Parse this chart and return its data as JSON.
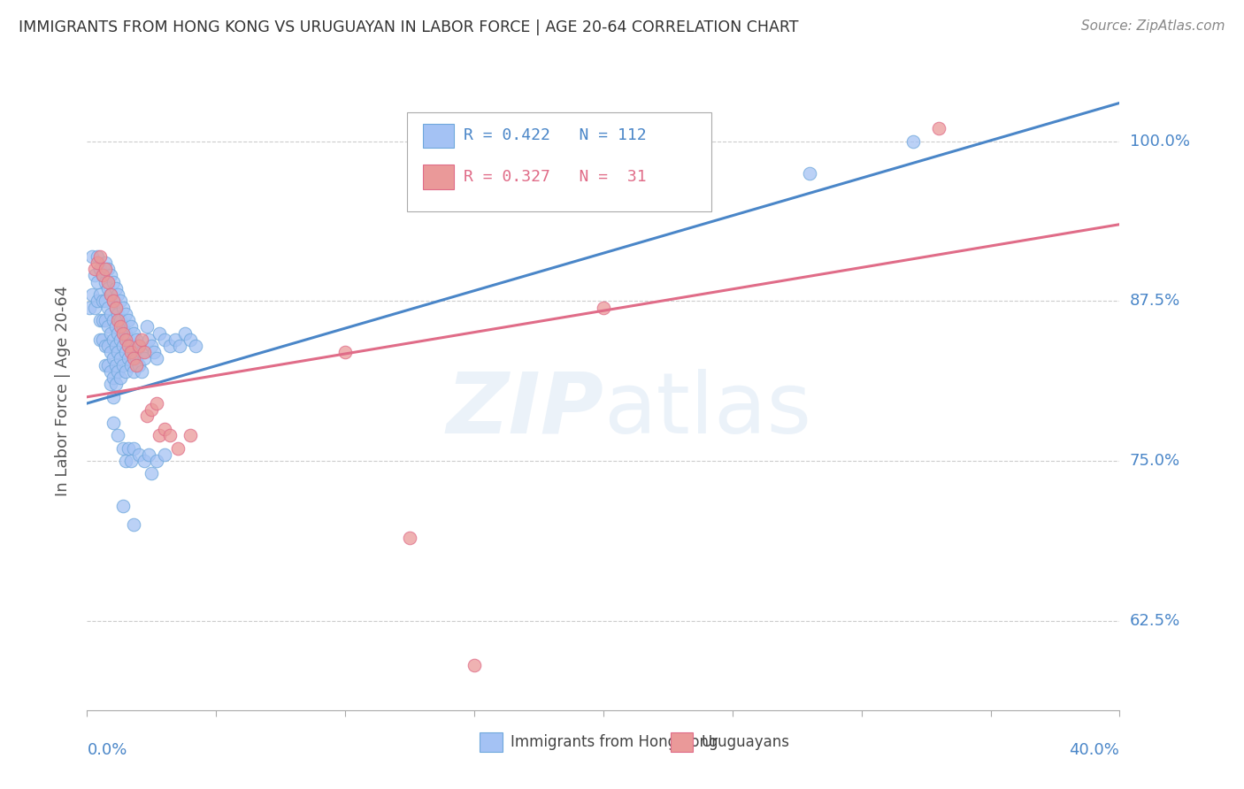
{
  "title": "IMMIGRANTS FROM HONG KONG VS URUGUAYAN IN LABOR FORCE | AGE 20-64 CORRELATION CHART",
  "source_text": "Source: ZipAtlas.com",
  "ylabel": "In Labor Force | Age 20-64",
  "yticks": [
    0.625,
    0.75,
    0.875,
    1.0
  ],
  "ytick_labels": [
    "62.5%",
    "75.0%",
    "87.5%",
    "100.0%"
  ],
  "xlim": [
    0.0,
    0.4
  ],
  "ylim": [
    0.555,
    1.055
  ],
  "title_color": "#333333",
  "axis_color": "#4a86c8",
  "hk_line_color": "#4a86c8",
  "uy_line_color": "#e06c88",
  "hk_dot_color": "#a4c2f4",
  "uy_dot_color": "#ea9999",
  "hk_dot_edge": "#6fa8dc",
  "uy_dot_edge": "#e06c88",
  "hk_scatter": [
    [
      0.001,
      0.87
    ],
    [
      0.002,
      0.88
    ],
    [
      0.002,
      0.91
    ],
    [
      0.003,
      0.895
    ],
    [
      0.003,
      0.87
    ],
    [
      0.004,
      0.91
    ],
    [
      0.004,
      0.89
    ],
    [
      0.004,
      0.875
    ],
    [
      0.005,
      0.9
    ],
    [
      0.005,
      0.88
    ],
    [
      0.005,
      0.86
    ],
    [
      0.005,
      0.845
    ],
    [
      0.006,
      0.895
    ],
    [
      0.006,
      0.875
    ],
    [
      0.006,
      0.86
    ],
    [
      0.006,
      0.845
    ],
    [
      0.007,
      0.905
    ],
    [
      0.007,
      0.89
    ],
    [
      0.007,
      0.875
    ],
    [
      0.007,
      0.86
    ],
    [
      0.007,
      0.84
    ],
    [
      0.007,
      0.825
    ],
    [
      0.008,
      0.9
    ],
    [
      0.008,
      0.885
    ],
    [
      0.008,
      0.87
    ],
    [
      0.008,
      0.855
    ],
    [
      0.008,
      0.84
    ],
    [
      0.008,
      0.825
    ],
    [
      0.009,
      0.895
    ],
    [
      0.009,
      0.88
    ],
    [
      0.009,
      0.865
    ],
    [
      0.009,
      0.85
    ],
    [
      0.009,
      0.835
    ],
    [
      0.009,
      0.82
    ],
    [
      0.009,
      0.81
    ],
    [
      0.01,
      0.89
    ],
    [
      0.01,
      0.875
    ],
    [
      0.01,
      0.86
    ],
    [
      0.01,
      0.845
    ],
    [
      0.01,
      0.83
    ],
    [
      0.01,
      0.815
    ],
    [
      0.01,
      0.8
    ],
    [
      0.011,
      0.885
    ],
    [
      0.011,
      0.87
    ],
    [
      0.011,
      0.855
    ],
    [
      0.011,
      0.84
    ],
    [
      0.011,
      0.825
    ],
    [
      0.011,
      0.81
    ],
    [
      0.012,
      0.88
    ],
    [
      0.012,
      0.865
    ],
    [
      0.012,
      0.85
    ],
    [
      0.012,
      0.835
    ],
    [
      0.012,
      0.82
    ],
    [
      0.013,
      0.875
    ],
    [
      0.013,
      0.86
    ],
    [
      0.013,
      0.845
    ],
    [
      0.013,
      0.83
    ],
    [
      0.013,
      0.815
    ],
    [
      0.014,
      0.87
    ],
    [
      0.014,
      0.855
    ],
    [
      0.014,
      0.84
    ],
    [
      0.014,
      0.825
    ],
    [
      0.015,
      0.865
    ],
    [
      0.015,
      0.85
    ],
    [
      0.015,
      0.835
    ],
    [
      0.015,
      0.82
    ],
    [
      0.016,
      0.86
    ],
    [
      0.016,
      0.845
    ],
    [
      0.016,
      0.83
    ],
    [
      0.017,
      0.855
    ],
    [
      0.017,
      0.84
    ],
    [
      0.017,
      0.825
    ],
    [
      0.018,
      0.85
    ],
    [
      0.018,
      0.835
    ],
    [
      0.018,
      0.82
    ],
    [
      0.019,
      0.845
    ],
    [
      0.019,
      0.83
    ],
    [
      0.02,
      0.84
    ],
    [
      0.02,
      0.825
    ],
    [
      0.021,
      0.835
    ],
    [
      0.021,
      0.82
    ],
    [
      0.022,
      0.83
    ],
    [
      0.023,
      0.855
    ],
    [
      0.024,
      0.845
    ],
    [
      0.025,
      0.84
    ],
    [
      0.026,
      0.835
    ],
    [
      0.027,
      0.83
    ],
    [
      0.028,
      0.85
    ],
    [
      0.03,
      0.845
    ],
    [
      0.032,
      0.84
    ],
    [
      0.034,
      0.845
    ],
    [
      0.036,
      0.84
    ],
    [
      0.038,
      0.85
    ],
    [
      0.04,
      0.845
    ],
    [
      0.042,
      0.84
    ],
    [
      0.01,
      0.78
    ],
    [
      0.012,
      0.77
    ],
    [
      0.014,
      0.76
    ],
    [
      0.015,
      0.75
    ],
    [
      0.016,
      0.76
    ],
    [
      0.017,
      0.75
    ],
    [
      0.018,
      0.76
    ],
    [
      0.02,
      0.755
    ],
    [
      0.022,
      0.75
    ],
    [
      0.024,
      0.755
    ],
    [
      0.025,
      0.74
    ],
    [
      0.027,
      0.75
    ],
    [
      0.03,
      0.755
    ],
    [
      0.014,
      0.715
    ],
    [
      0.018,
      0.7
    ],
    [
      0.28,
      0.975
    ],
    [
      0.32,
      1.0
    ]
  ],
  "uy_scatter": [
    [
      0.003,
      0.9
    ],
    [
      0.004,
      0.905
    ],
    [
      0.005,
      0.91
    ],
    [
      0.006,
      0.895
    ],
    [
      0.007,
      0.9
    ],
    [
      0.008,
      0.89
    ],
    [
      0.009,
      0.88
    ],
    [
      0.01,
      0.875
    ],
    [
      0.011,
      0.87
    ],
    [
      0.012,
      0.86
    ],
    [
      0.013,
      0.855
    ],
    [
      0.014,
      0.85
    ],
    [
      0.015,
      0.845
    ],
    [
      0.016,
      0.84
    ],
    [
      0.017,
      0.835
    ],
    [
      0.018,
      0.83
    ],
    [
      0.019,
      0.825
    ],
    [
      0.02,
      0.84
    ],
    [
      0.021,
      0.845
    ],
    [
      0.022,
      0.835
    ],
    [
      0.023,
      0.785
    ],
    [
      0.025,
      0.79
    ],
    [
      0.027,
      0.795
    ],
    [
      0.028,
      0.77
    ],
    [
      0.03,
      0.775
    ],
    [
      0.032,
      0.77
    ],
    [
      0.035,
      0.76
    ],
    [
      0.04,
      0.77
    ],
    [
      0.1,
      0.835
    ],
    [
      0.2,
      0.87
    ],
    [
      0.33,
      1.01
    ],
    [
      0.125,
      0.69
    ],
    [
      0.15,
      0.59
    ]
  ]
}
